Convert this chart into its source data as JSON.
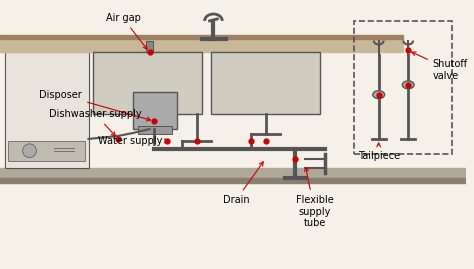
{
  "bg_color": "#f5f0e8",
  "title": "",
  "labels": {
    "air_gap": "Air gap",
    "tailpiece": "Tailpiece",
    "disposer": "Disposer",
    "dishwasher_supply": "Dishwasher supply",
    "water_supply": "Water supply",
    "drain": "Drain",
    "flexible_supply_tube": "Flexible\nsupply\ntube",
    "shutoff_valve": "Shutoff\nvalve"
  },
  "counter_color": "#c8b89a",
  "sink_color": "#d0ccc0",
  "pipe_color": "#555555",
  "arrow_color": "#cc0000",
  "dot_color": "#cc0000",
  "dishwasher_color": "#e8e4dc",
  "dashed_box_color": "#555555",
  "line_width": 1.5,
  "font_size": 7
}
